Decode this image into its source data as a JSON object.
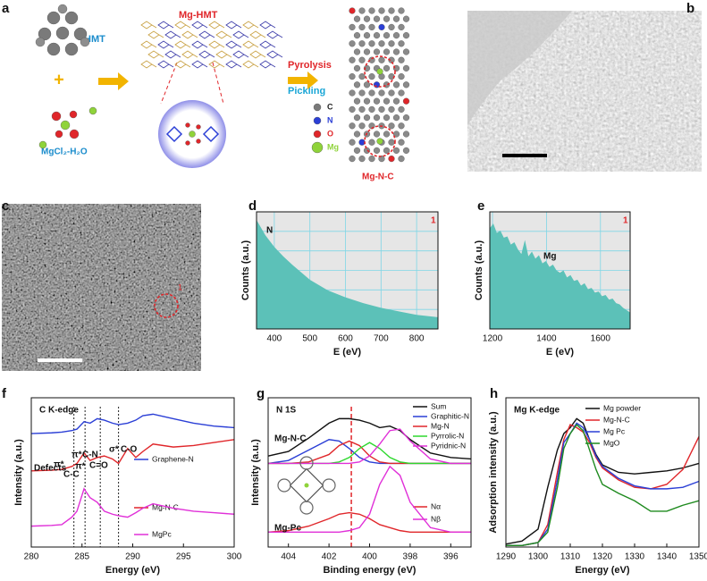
{
  "panel_labels": [
    "a",
    "b",
    "c",
    "d",
    "e",
    "f",
    "g",
    "h"
  ],
  "diagram": {
    "hmt": "HMT",
    "plus": "+",
    "salt": "MgCl₂-H₂O",
    "complex": "Mg-HMT",
    "step1": "Pyrolysis",
    "step2": "Pickling",
    "legend": [
      "C",
      "N",
      "O",
      "Mg"
    ],
    "product": "Mg-N-C"
  },
  "image_c": {
    "marker": "1"
  },
  "chart_data": [
    {
      "type": "area",
      "xlabel": "E (eV)",
      "ylabel": "Counts (a.u.)",
      "color": "#5cc1b8",
      "grid": true,
      "x": [
        350,
        375,
        400,
        425,
        450,
        500,
        550,
        600,
        650,
        700,
        750,
        800,
        860
      ],
      "values": [
        0.93,
        0.8,
        0.7,
        0.62,
        0.55,
        0.42,
        0.33,
        0.27,
        0.22,
        0.18,
        0.15,
        0.12,
        0.1
      ],
      "xlim": [
        350,
        860
      ],
      "ylim": [
        0,
        1
      ],
      "xticks": [
        400,
        500,
        600,
        700,
        800
      ],
      "annotations": [
        "N",
        "1"
      ]
    },
    {
      "type": "area",
      "xlabel": "E (eV)",
      "ylabel": "Counts (a.u.)",
      "color": "#5cc1b8",
      "grid": true,
      "x": [
        1190,
        1203,
        1216,
        1229,
        1242,
        1255,
        1268,
        1281,
        1294,
        1307,
        1320,
        1333,
        1346,
        1359,
        1372,
        1385,
        1398,
        1411,
        1424,
        1437,
        1450,
        1463,
        1476,
        1489,
        1502,
        1515,
        1528,
        1541,
        1554,
        1567,
        1580,
        1593,
        1606,
        1619,
        1632,
        1645,
        1658,
        1671,
        1684,
        1697,
        1710
      ],
      "values": [
        0.86,
        0.9,
        0.82,
        0.84,
        0.78,
        0.79,
        0.72,
        0.74,
        0.68,
        0.64,
        0.76,
        0.62,
        0.66,
        0.6,
        0.63,
        0.56,
        0.58,
        0.53,
        0.55,
        0.5,
        0.48,
        0.5,
        0.44,
        0.46,
        0.41,
        0.42,
        0.37,
        0.39,
        0.34,
        0.35,
        0.31,
        0.32,
        0.28,
        0.29,
        0.25,
        0.26,
        0.22,
        0.21,
        0.18,
        0.16,
        0.14
      ],
      "xlim": [
        1190,
        1710
      ],
      "ylim": [
        0,
        1
      ],
      "xticks": [
        1200,
        1400,
        1600
      ],
      "annotations": [
        "Mg",
        "1"
      ]
    },
    {
      "type": "line",
      "title": "C K-edge",
      "xlabel": "Energy (eV)",
      "ylabel": "Intensity (a.u.)",
      "x": [
        280,
        282,
        283,
        284,
        284.5,
        285.2,
        285.8,
        286.5,
        287.2,
        288,
        288.6,
        289.5,
        290.3,
        291,
        292,
        294,
        296,
        298,
        300
      ],
      "series": [
        {
          "name": "Graphene-N",
          "color": "#2b3fd6",
          "values": [
            7.6,
            7.65,
            7.7,
            7.8,
            7.9,
            8.4,
            8.3,
            8.6,
            8.5,
            8.3,
            8.2,
            8.3,
            8.5,
            8.8,
            8.9,
            8.6,
            8.3,
            8.1,
            8.0
          ]
        },
        {
          "name": "Mg-N-C",
          "color": "#e0262a",
          "values": [
            5.1,
            5.15,
            5.2,
            5.4,
            5.6,
            6.3,
            5.8,
            6.0,
            6.1,
            5.9,
            5.6,
            6.6,
            6.0,
            6.4,
            6.9,
            6.7,
            6.8,
            7.0,
            7.2
          ]
        },
        {
          "name": "MgPc",
          "color": "#e030d8",
          "values": [
            1.4,
            1.45,
            1.5,
            2.0,
            2.4,
            3.9,
            3.3,
            3.0,
            2.4,
            2.2,
            2.1,
            2.0,
            2.3,
            2.6,
            2.9,
            2.6,
            2.4,
            2.3,
            2.2
          ]
        }
      ],
      "vlines": [
        284.2,
        285.3,
        286.8,
        288.6
      ],
      "xlim": [
        280,
        300
      ],
      "ylim": [
        0,
        10
      ],
      "xticks": [
        280,
        285,
        290,
        295,
        300
      ],
      "annotations": [
        "Defects",
        "π*",
        "C-C",
        "π*",
        "C-N",
        "π*",
        "C=O",
        "σ*",
        "C-O"
      ]
    },
    {
      "type": "line",
      "title": "N 1S",
      "xlabel": "Binding energy (eV)",
      "ylabel": "Intensity (a.u.)",
      "x": [
        405,
        404,
        403,
        402,
        401.5,
        401,
        400.5,
        400,
        399.5,
        399,
        398.5,
        398,
        397,
        396,
        395
      ],
      "series": [
        {
          "name": "Sum",
          "color": "#111111",
          "values": [
            6.1,
            6.4,
            7.3,
            8.3,
            8.6,
            8.6,
            8.5,
            8.3,
            8.0,
            8.1,
            7.8,
            7.2,
            6.3,
            6.0,
            5.9
          ]
        },
        {
          "name": "Graphitic-N",
          "color": "#2b3fd6",
          "values": [
            5.6,
            5.8,
            6.5,
            7.2,
            7.1,
            6.6,
            6.0,
            5.7,
            5.6,
            5.6,
            5.6,
            5.6,
            5.6,
            5.6,
            5.6
          ]
        },
        {
          "name": "Mg-N",
          "color": "#e0262a",
          "values": [
            5.6,
            5.6,
            5.7,
            6.2,
            6.8,
            7.1,
            6.8,
            6.1,
            5.7,
            5.6,
            5.6,
            5.6,
            5.6,
            5.6,
            5.6
          ]
        },
        {
          "name": "Pyrrolic-N",
          "color": "#2ed82e",
          "values": [
            5.6,
            5.6,
            5.6,
            5.6,
            5.7,
            6.0,
            6.6,
            7.0,
            6.6,
            6.0,
            5.7,
            5.6,
            5.6,
            5.6,
            5.6
          ]
        },
        {
          "name": "Pyridnic-N",
          "color": "#e030d8",
          "values": [
            5.6,
            5.6,
            5.6,
            5.6,
            5.6,
            5.6,
            5.7,
            6.1,
            6.9,
            7.8,
            7.9,
            7.1,
            5.9,
            5.6,
            5.6
          ]
        },
        {
          "name": "Nα",
          "color": "#e0262a",
          "values": [
            1.0,
            1.1,
            1.4,
            1.9,
            2.2,
            2.3,
            2.2,
            1.9,
            1.5,
            1.3,
            1.1,
            1.0,
            1.0,
            1.0,
            1.0
          ]
        },
        {
          "name": "Nβ",
          "color": "#e030d8",
          "values": [
            1.0,
            1.0,
            1.0,
            1.0,
            1.0,
            1.1,
            1.3,
            2.2,
            4.2,
            5.4,
            4.8,
            3.0,
            1.3,
            1.0,
            1.0
          ]
        }
      ],
      "vlines": [
        400.9
      ],
      "xlim": [
        405,
        395
      ],
      "ylim": [
        0,
        10
      ],
      "xticks": [
        404,
        402,
        400,
        398,
        396
      ],
      "annotations": [
        "Mg-N-C",
        "Mg-Pc"
      ]
    },
    {
      "type": "line",
      "title": "Mg K-edge",
      "xlabel": "Energy (eV)",
      "ylabel": "Adsorption intensity (a.u.)",
      "x": [
        1290,
        1295,
        1300,
        1303,
        1306,
        1308,
        1310,
        1312,
        1314,
        1316,
        1318,
        1320,
        1325,
        1330,
        1335,
        1340,
        1345,
        1350
      ],
      "series": [
        {
          "name": "Mg powder",
          "color": "#111111",
          "values": [
            0.2,
            0.4,
            1.2,
            4.0,
            6.5,
            7.6,
            8.0,
            8.6,
            8.3,
            7.2,
            6.2,
            5.5,
            5.0,
            4.9,
            5.0,
            5.1,
            5.3,
            5.6
          ]
        },
        {
          "name": "Mg-N-C",
          "color": "#e0262a",
          "values": [
            0.1,
            0.1,
            0.3,
            1.5,
            5.0,
            7.2,
            8.2,
            8.0,
            7.7,
            7.0,
            6.0,
            5.3,
            4.5,
            4.0,
            3.9,
            4.2,
            5.2,
            7.4
          ]
        },
        {
          "name": "Mg Pc",
          "color": "#2b3fd6",
          "values": [
            0.1,
            0.1,
            0.3,
            1.2,
            4.5,
            7.0,
            7.6,
            8.3,
            8.0,
            7.2,
            6.1,
            5.4,
            4.6,
            4.1,
            3.9,
            3.9,
            4.0,
            4.4
          ]
        },
        {
          "name": "MgO",
          "color": "#1e8a1e",
          "values": [
            0.1,
            0.1,
            0.3,
            1.0,
            4.0,
            6.6,
            7.6,
            8.2,
            7.8,
            6.5,
            5.2,
            4.2,
            3.6,
            3.1,
            2.4,
            2.4,
            2.8,
            3.1
          ]
        }
      ],
      "xlim": [
        1290,
        1350
      ],
      "ylim": [
        0,
        10
      ],
      "xticks": [
        1290,
        1300,
        1310,
        1320,
        1330,
        1340,
        1350
      ]
    }
  ]
}
